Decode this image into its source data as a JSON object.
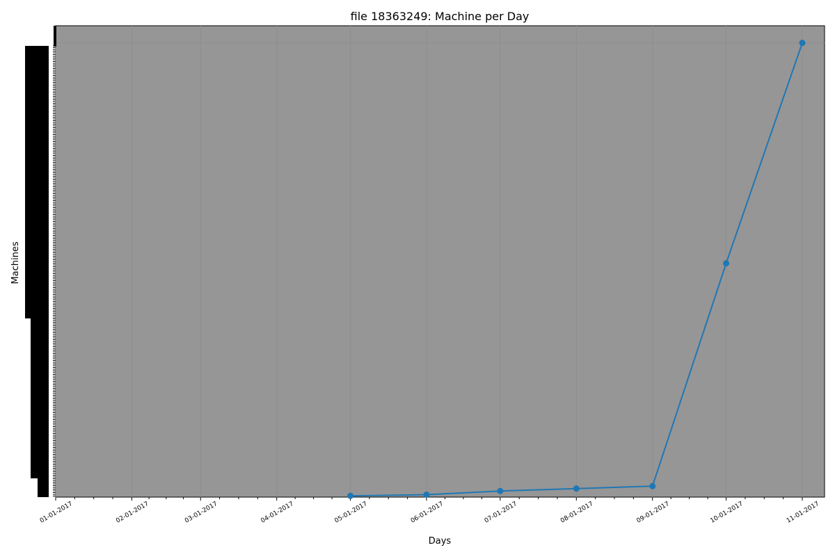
{
  "chart_data": {
    "type": "line",
    "title": "file 18363249: Machine per Day",
    "xlabel": "Days",
    "ylabel": "Machines",
    "x_tick_labels": [
      "01-01-2017",
      "02-01-2017",
      "03-01-2017",
      "04-01-2017",
      "05-01-2017",
      "06-01-2017",
      "07-01-2017",
      "08-01-2017",
      "09-01-2017",
      "10-01-2017",
      "11-01-2017"
    ],
    "x": [
      "05-01-2017",
      "06-01-2017",
      "07-01-2017",
      "08-01-2017",
      "09-01-2017",
      "10-01-2017",
      "11-01-2017"
    ],
    "y": [
      1,
      20,
      80,
      120,
      160,
      3800,
      7400
    ],
    "ylim": [
      -20,
      7680
    ],
    "grid": true,
    "colors": {
      "background": "#969696",
      "line": "#1f77b4"
    }
  }
}
